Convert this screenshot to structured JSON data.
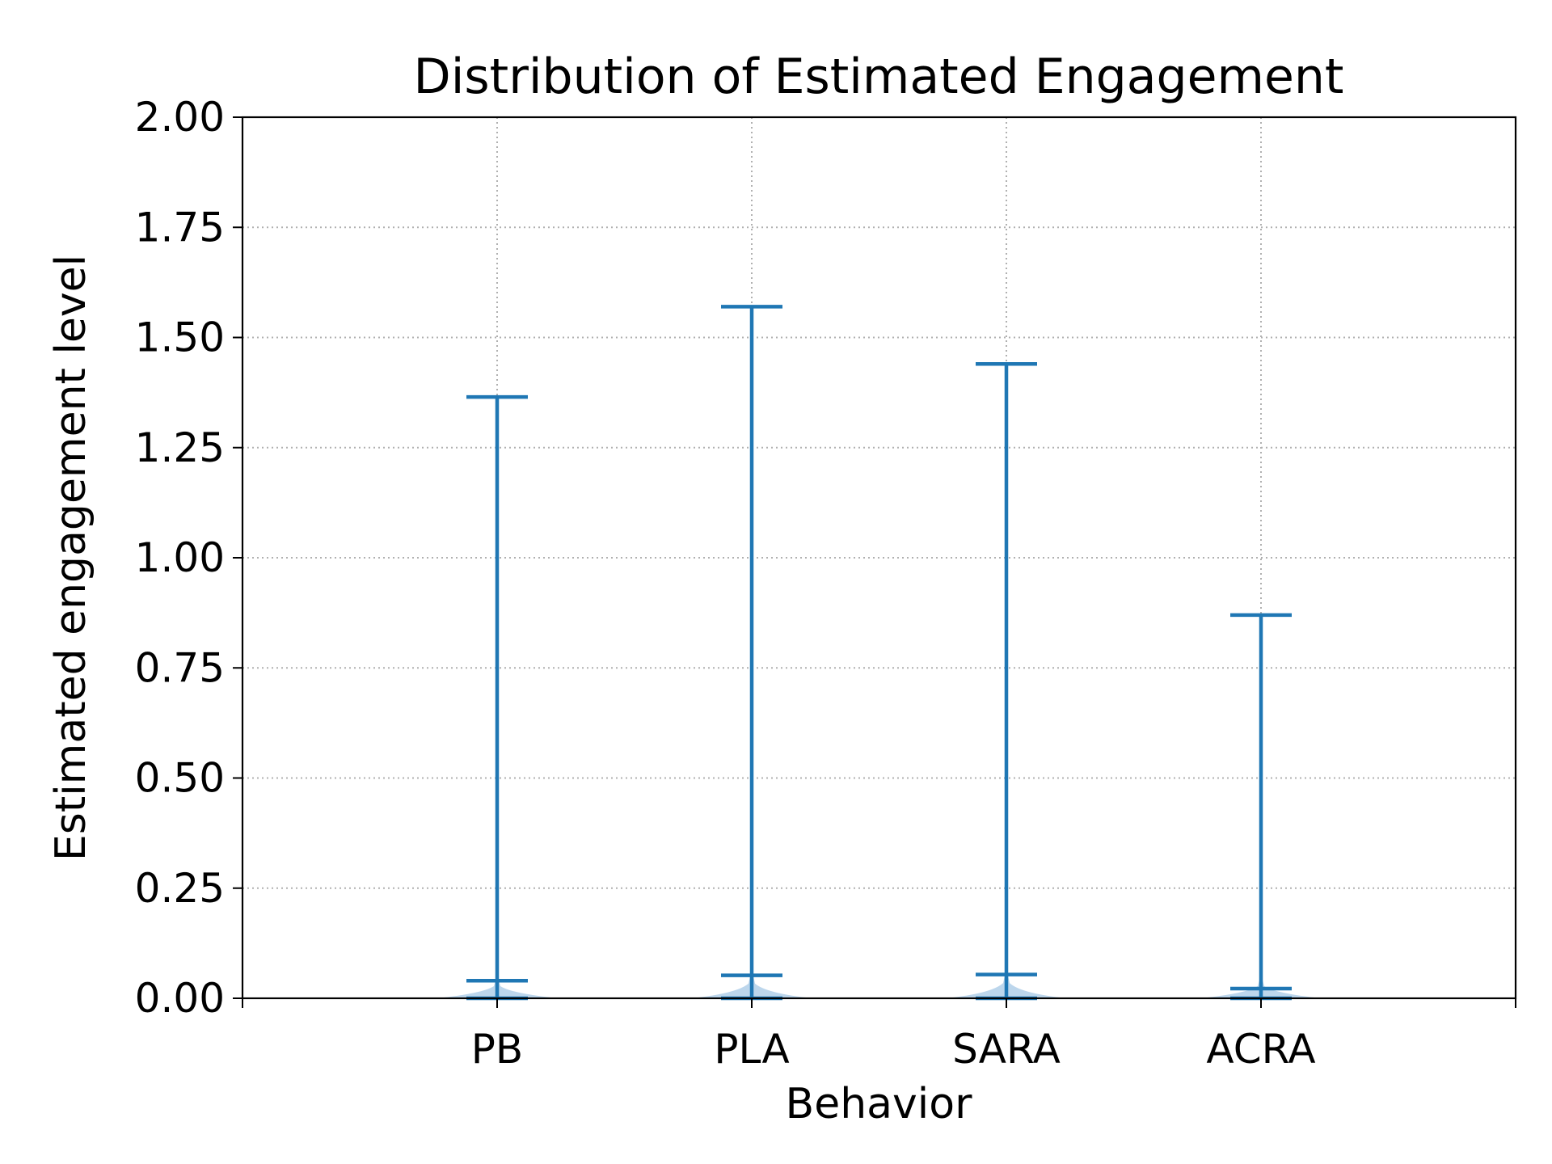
{
  "chart_data": {
    "type": "violin",
    "title": "Distribution of Estimated Engagement",
    "xlabel": "Behavior",
    "ylabel": "Estimated engagement level",
    "categories": [
      "PB",
      "PLA",
      "SARA",
      "ACRA"
    ],
    "xlim": [
      0,
      5
    ],
    "ylim": [
      0,
      2
    ],
    "yticks": [
      "0.00",
      "0.25",
      "0.50",
      "0.75",
      "1.00",
      "1.25",
      "1.50",
      "1.75",
      "2.00"
    ],
    "grid": true,
    "stats": [
      {
        "category": "PB",
        "min": 0.0,
        "mean": 0.04,
        "max": 1.365
      },
      {
        "category": "PLA",
        "min": 0.0,
        "mean": 0.052,
        "max": 1.57
      },
      {
        "category": "SARA",
        "min": 0.0,
        "mean": 0.054,
        "max": 1.44
      },
      {
        "category": "ACRA",
        "min": 0.0,
        "mean": 0.022,
        "max": 0.87
      }
    ],
    "color": "#1f77b4",
    "fill_color": "#a6c8e6"
  }
}
